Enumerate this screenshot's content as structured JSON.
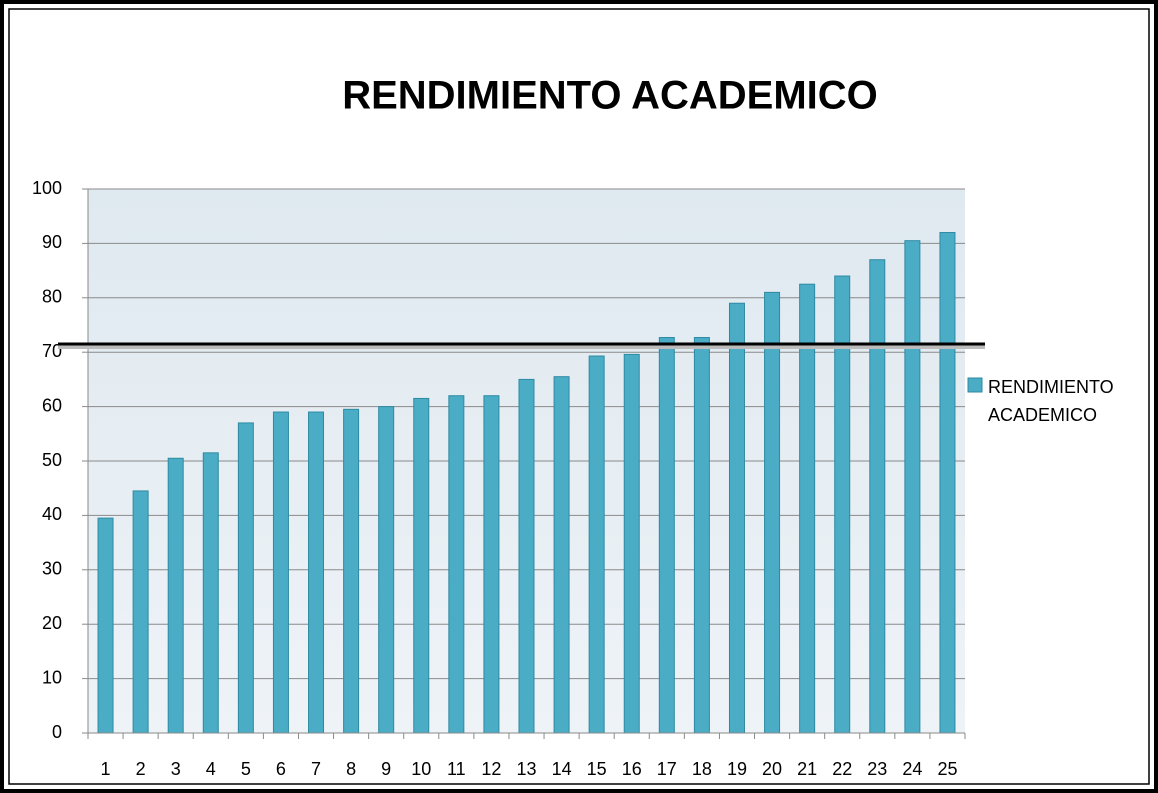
{
  "chart_data": {
    "type": "bar",
    "title": "RENDIMIENTO ACADEMICO",
    "categories": [
      "1",
      "2",
      "3",
      "4",
      "5",
      "6",
      "7",
      "8",
      "9",
      "10",
      "11",
      "12",
      "13",
      "14",
      "15",
      "16",
      "17",
      "18",
      "19",
      "20",
      "21",
      "22",
      "23",
      "24",
      "25"
    ],
    "series": [
      {
        "name": "RENDIMIENTO ACADEMICO",
        "color": "#4bacc6",
        "values": [
          39.5,
          44.5,
          50.5,
          51.5,
          57,
          59,
          59,
          59.5,
          60,
          61.5,
          62,
          62,
          65,
          65.5,
          69.3,
          69.6,
          72.7,
          72.7,
          79,
          81,
          82.5,
          84,
          87,
          90.5,
          92
        ]
      }
    ],
    "reference_line": 71.5,
    "ylim": [
      0,
      100
    ],
    "yticks": [
      0,
      10,
      20,
      30,
      40,
      50,
      60,
      70,
      80,
      90,
      100
    ],
    "grid": true,
    "legend": "right"
  }
}
